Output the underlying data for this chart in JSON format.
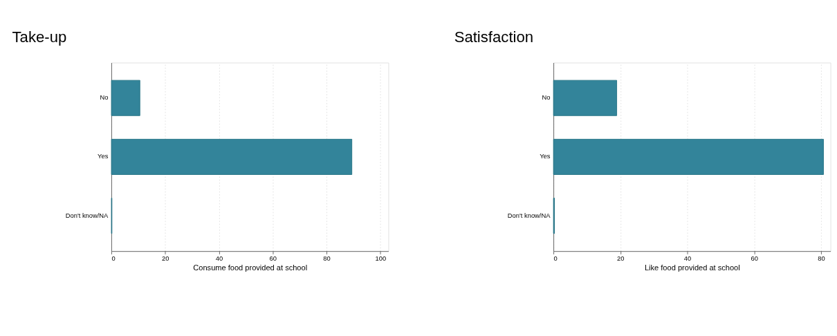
{
  "chart_data": [
    {
      "type": "bar",
      "orientation": "horizontal",
      "title": "Take-up",
      "categories": [
        "No",
        "Yes",
        "Don't know/NA"
      ],
      "values": [
        10.6,
        89.4,
        0.2
      ],
      "color": "#33849a",
      "xlim": [
        0,
        103
      ],
      "xticks": [
        0,
        20,
        40,
        60,
        80,
        100
      ],
      "xlabel": "Consume food provided at school",
      "grid": "x"
    },
    {
      "type": "bar",
      "orientation": "horizontal",
      "title": "Satisfaction",
      "categories": [
        "No",
        "Yes",
        "Don't know/NA"
      ],
      "values": [
        18.9,
        80.7,
        0.3
      ],
      "color": "#33849a",
      "xlim": [
        0,
        82.8
      ],
      "xticks": [
        0,
        20,
        40,
        60,
        80
      ],
      "xlabel": "Like food provided at school",
      "grid": "x"
    }
  ]
}
